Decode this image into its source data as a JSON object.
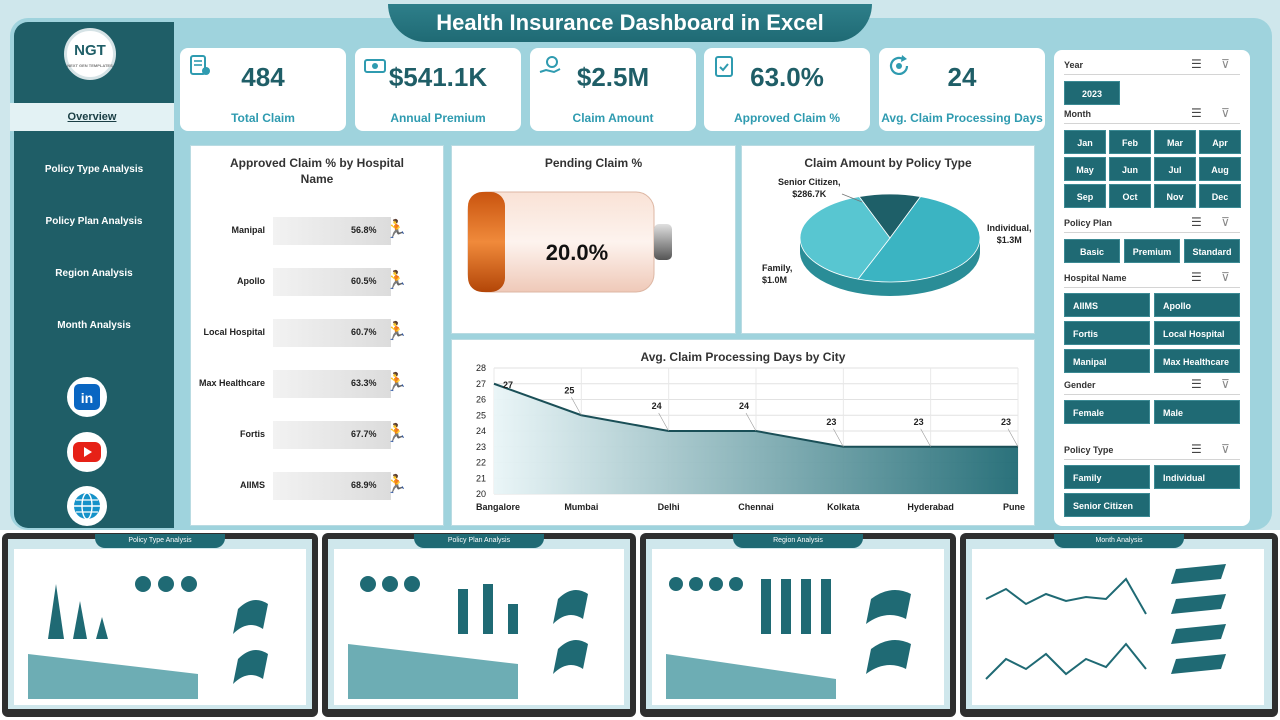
{
  "title": "Health Insurance Dashboard in Excel",
  "logo": {
    "text": "NGT",
    "sub": "NEXT GEN TEMPLATES"
  },
  "nav": [
    "Overview",
    "Policy Type Analysis",
    "Policy Plan Analysis",
    "Region Analysis",
    "Month Analysis"
  ],
  "kpis": [
    {
      "value": "484",
      "label": "Total Claim",
      "icon": "claim-form-icon"
    },
    {
      "value": "$541.1K",
      "label": "Annual Premium",
      "icon": "money-icon"
    },
    {
      "value": "$2.5M",
      "label": "Claim Amount",
      "icon": "money-hand-icon"
    },
    {
      "value": "63.0%",
      "label": "Approved Claim %",
      "icon": "clipboard-check-icon"
    },
    {
      "value": "24",
      "label": "Avg. Claim Processing Days",
      "icon": "refresh-gear-icon"
    }
  ],
  "hospital_chart": {
    "title": "Approved Claim % by Hospital Name",
    "rows": [
      {
        "name": "Manipal",
        "value": "56.8%"
      },
      {
        "name": "Apollo",
        "value": "60.5%"
      },
      {
        "name": "Local Hospital",
        "value": "60.7%"
      },
      {
        "name": "Max Healthcare",
        "value": "63.3%"
      },
      {
        "name": "Fortis",
        "value": "67.7%"
      },
      {
        "name": "AIIMS",
        "value": "68.9%"
      }
    ]
  },
  "pending": {
    "title": "Pending Claim %",
    "value": "20.0%",
    "fraction": 0.2
  },
  "policy_pie": {
    "title": "Claim Amount by Policy Type",
    "labels": [
      {
        "line1": "Senior Citizen,",
        "line2": "$286.7K"
      },
      {
        "line1": "Individual,",
        "line2": "$1.3M"
      },
      {
        "line1": "Family,",
        "line2": "$1.0M"
      }
    ]
  },
  "city_chart": {
    "title": "Avg. Claim Processing Days by City",
    "yticks": [
      "28",
      "27",
      "26",
      "25",
      "24",
      "23",
      "22",
      "21",
      "20"
    ]
  },
  "filters": {
    "year": {
      "label": "Year",
      "options": [
        "2023"
      ]
    },
    "month": {
      "label": "Month",
      "options": [
        "Jan",
        "Feb",
        "Mar",
        "Apr",
        "May",
        "Jun",
        "Jul",
        "Aug",
        "Sep",
        "Oct",
        "Nov",
        "Dec"
      ]
    },
    "policy_plan": {
      "label": "Policy Plan",
      "options": [
        "Basic",
        "Premium",
        "Standard"
      ]
    },
    "hospital": {
      "label": "Hospital Name",
      "options": [
        "AIIMS",
        "Apollo",
        "Fortis",
        "Local Hospital",
        "Manipal",
        "Max Healthcare"
      ]
    },
    "gender": {
      "label": "Gender",
      "options": [
        "Female",
        "Male"
      ]
    },
    "policy_type": {
      "label": "Policy Type",
      "options": [
        "Family",
        "Individual",
        "Senior Citizen"
      ]
    }
  },
  "thumbnails": [
    "Policy Type Analysis",
    "Policy Plan Analysis",
    "Region Analysis",
    "Month Analysis"
  ],
  "chart_data": [
    {
      "type": "bar",
      "title": "Approved Claim % by Hospital Name",
      "categories": [
        "Manipal",
        "Apollo",
        "Local Hospital",
        "Max Healthcare",
        "Fortis",
        "AIIMS"
      ],
      "values": [
        56.8,
        60.5,
        60.7,
        63.3,
        67.7,
        68.9
      ]
    },
    {
      "type": "pie",
      "title": "Claim Amount by Policy Type",
      "categories": [
        "Senior Citizen",
        "Individual",
        "Family"
      ],
      "values": [
        286.7,
        1300,
        1000
      ]
    },
    {
      "type": "area",
      "title": "Avg. Claim Processing Days by City",
      "categories": [
        "Bangalore",
        "Mumbai",
        "Delhi",
        "Chennai",
        "Kolkata",
        "Hyderabad",
        "Pune"
      ],
      "values": [
        27,
        25,
        24,
        24,
        23,
        23,
        23
      ],
      "ylim": [
        20,
        28
      ]
    }
  ]
}
